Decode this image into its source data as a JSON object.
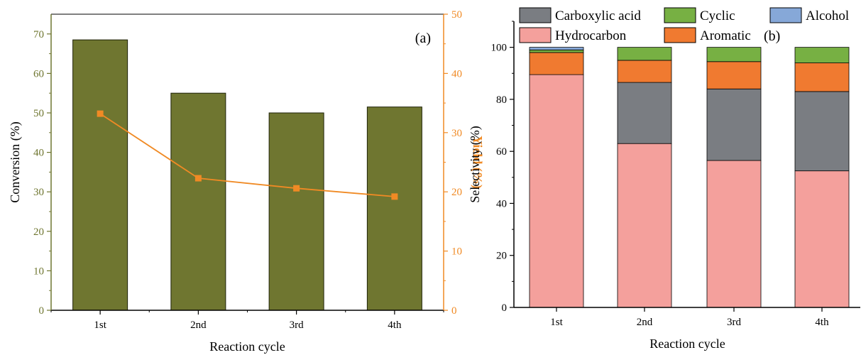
{
  "chart_data": [
    {
      "type": "bar",
      "panel_label": "(a)",
      "categories": [
        "1st",
        "2nd",
        "3rd",
        "4th"
      ],
      "xlabel": "Reaction cycle",
      "series": [
        {
          "name": "Conversion",
          "type": "bar",
          "axis": "left",
          "values": [
            68.5,
            55.0,
            50.0,
            51.5
          ]
        },
        {
          "name": "Yield",
          "type": "line",
          "axis": "right",
          "values": [
            33.2,
            22.3,
            20.6,
            19.2
          ]
        }
      ],
      "ylabel": "Conversion (%)",
      "ylim": [
        0,
        75
      ],
      "yticks": [
        "0",
        "10",
        "20",
        "30",
        "40",
        "50",
        "60",
        "70"
      ],
      "y2label": "Yield (%)",
      "y2lim": [
        0,
        50
      ],
      "y2ticks": [
        "0",
        "10",
        "20",
        "30",
        "40",
        "50"
      ],
      "colors": {
        "bar": "#6f7630",
        "bar_edge": "#1e2208",
        "line": "#f08a24",
        "left_axis": "#6f7630",
        "right_axis": "#f08a24"
      }
    },
    {
      "type": "bar",
      "stacked": true,
      "panel_label": "(b)",
      "categories": [
        "1st",
        "2nd",
        "3rd",
        "4th"
      ],
      "xlabel": "Reaction cycle",
      "ylabel": "Selectivity (%)",
      "ylim": [
        0,
        110
      ],
      "yticks": [
        "0",
        "20",
        "40",
        "60",
        "80",
        "100"
      ],
      "series": [
        {
          "name": "Hydrocarbon",
          "color": "#f4a09c",
          "values": [
            89.5,
            63.0,
            56.5,
            52.5
          ]
        },
        {
          "name": "Carboxylic acid",
          "color": "#7a7d82",
          "values": [
            0,
            23.5,
            27.5,
            30.5
          ]
        },
        {
          "name": "Aromatic",
          "color": "#f07a30",
          "values": [
            8.5,
            8.5,
            10.5,
            11.0
          ]
        },
        {
          "name": "Cyclic",
          "color": "#77b043",
          "values": [
            1.0,
            5.0,
            5.5,
            6.0
          ]
        },
        {
          "name": "Alcohol",
          "color": "#86a8d8",
          "values": [
            1.0,
            0,
            0,
            0
          ]
        }
      ],
      "legend": [
        {
          "name": "Carboxylic acid",
          "color": "#7a7d82"
        },
        {
          "name": "Cyclic",
          "color": "#77b043"
        },
        {
          "name": "Alcohol",
          "color": "#86a8d8"
        },
        {
          "name": "Hydrocarbon",
          "color": "#f4a09c"
        },
        {
          "name": "Aromatic",
          "color": "#f07a30"
        }
      ],
      "legend_position": "top"
    }
  ]
}
